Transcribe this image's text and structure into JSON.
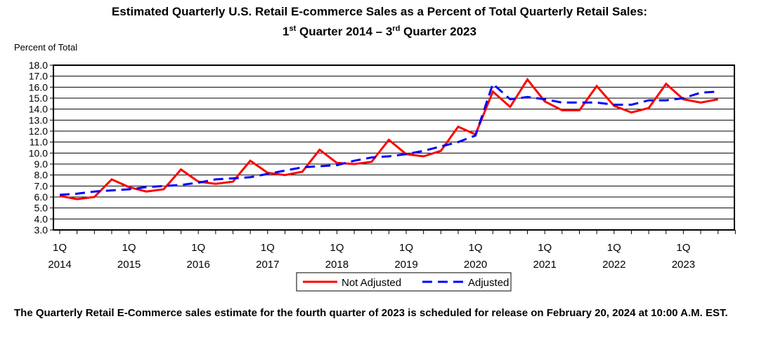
{
  "header": {
    "title": "Estimated Quarterly U.S. Retail E-commerce Sales as a Percent of Total Quarterly Retail Sales:",
    "subtitle": {
      "q1_num": "1",
      "q1_sup": "st",
      "mid": " Quarter 2014 – ",
      "q3_num": "3",
      "q3_sup": "rd",
      "end": " Quarter 2023"
    }
  },
  "footnote": "The Quarterly Retail E-Commerce sales estimate for the fourth quarter of 2023 is scheduled for release on February 20, 2024 at 10:00 A.M. EST.",
  "colors": {
    "not_adjusted": "#ff0000",
    "adjusted": "#0000ff",
    "grid": "#000000"
  },
  "chart_data": {
    "type": "line",
    "title": "Estimated Quarterly U.S. Retail E-commerce Sales as a Percent of Total Quarterly Retail Sales: 1st Quarter 2014 – 3rd Quarter 2023",
    "ylabel": "Percent of Total",
    "xlabel": "",
    "ylim": [
      3.0,
      18.0
    ],
    "ytick_step": 1.0,
    "yticks": [
      "3.0",
      "4.0",
      "5.0",
      "6.0",
      "7.0",
      "8.0",
      "9.0",
      "10.0",
      "11.0",
      "12.0",
      "13.0",
      "14.0",
      "15.0",
      "16.0",
      "17.0",
      "18.0"
    ],
    "xtick_labels": [
      {
        "q": "1Q",
        "year": "2014"
      },
      {
        "q": "1Q",
        "year": "2015"
      },
      {
        "q": "1Q",
        "year": "2016"
      },
      {
        "q": "1Q",
        "year": "2017"
      },
      {
        "q": "1Q",
        "year": "2018"
      },
      {
        "q": "1Q",
        "year": "2019"
      },
      {
        "q": "1Q",
        "year": "2020"
      },
      {
        "q": "1Q",
        "year": "2021"
      },
      {
        "q": "1Q",
        "year": "2022"
      },
      {
        "q": "1Q",
        "year": "2023"
      }
    ],
    "n_quarters": 39,
    "series": [
      {
        "name": "Not Adjusted",
        "style": "solid",
        "values": [
          6.1,
          5.8,
          6.0,
          7.6,
          6.9,
          6.5,
          6.7,
          8.5,
          7.4,
          7.2,
          7.4,
          9.3,
          8.2,
          8.0,
          8.3,
          10.3,
          9.1,
          9.0,
          9.2,
          11.2,
          9.9,
          9.7,
          10.2,
          12.4,
          11.7,
          15.6,
          14.2,
          16.7,
          14.7,
          13.9,
          13.9,
          16.1,
          14.3,
          13.7,
          14.1,
          16.3,
          14.9,
          14.6,
          14.9
        ]
      },
      {
        "name": "Adjusted",
        "style": "dashed",
        "values": [
          6.2,
          6.3,
          6.5,
          6.6,
          6.7,
          6.9,
          7.0,
          7.1,
          7.3,
          7.6,
          7.7,
          7.8,
          8.1,
          8.4,
          8.7,
          8.8,
          8.9,
          9.3,
          9.6,
          9.7,
          9.9,
          10.2,
          10.6,
          11.0,
          11.6,
          16.3,
          14.9,
          15.1,
          14.9,
          14.6,
          14.6,
          14.6,
          14.4,
          14.4,
          14.8,
          14.8,
          15.0,
          15.5,
          15.6
        ]
      }
    ],
    "legend": {
      "position": "bottom-center",
      "items": [
        "Not Adjusted",
        "Adjusted"
      ]
    }
  }
}
